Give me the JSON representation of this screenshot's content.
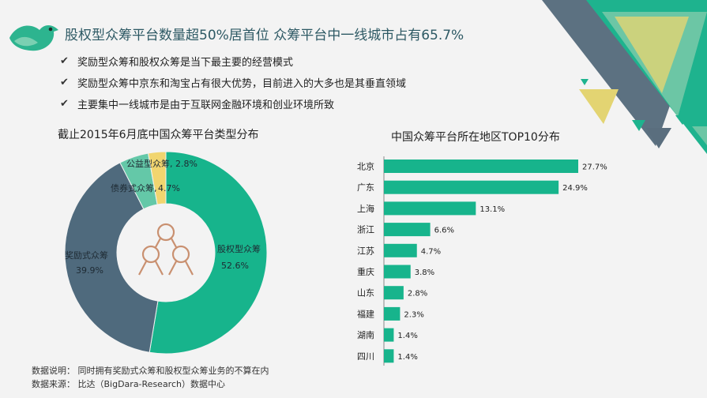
{
  "header": {
    "title": "股权型众筹平台数量超50%居首位  众筹平台中一线城市占有65.7%"
  },
  "bullets": [
    "奖励型众筹和股权众筹是当下最主要的经营模式",
    "奖励型众筹中京东和淘宝占有很大优势，目前进入的大多也是其垂直领域",
    "主要集中一线城市是由于互联网金融环境和创业环境所致"
  ],
  "icons": {
    "bullet_icon": "check-icon",
    "logo": "bird-icon",
    "pie_center": "network-nodes-icon"
  },
  "colors": {
    "teal": "#17b48c",
    "slate": "#4f6a7d",
    "mint": "#64c8a8",
    "yellow": "#f1d56f",
    "title": "#2d5964"
  },
  "chart_data": [
    {
      "type": "pie",
      "title": "截止2015年6月底中国众筹平台类型分布",
      "donut": true,
      "slices": [
        {
          "label": "股权型众筹",
          "value": 52.6,
          "value_text": "52.6%",
          "color": "#17b48c"
        },
        {
          "label": "奖励式众筹",
          "value": 39.9,
          "value_text": "39.9%",
          "color": "#4f6a7d"
        },
        {
          "label": "债券式众筹,",
          "value": 4.7,
          "value_text": "4.7%",
          "color": "#64c8a8"
        },
        {
          "label": "公益型众筹,",
          "value": 2.8,
          "value_text": "2.8%",
          "color": "#f1d56f"
        }
      ]
    },
    {
      "type": "bar",
      "orientation": "horizontal",
      "title": "中国众筹平台所在地区TOP10分布",
      "categories": [
        "北京",
        "广东",
        "上海",
        "浙江",
        "江苏",
        "重庆",
        "山东",
        "福建",
        "湖南",
        "四川"
      ],
      "values": [
        27.7,
        24.9,
        13.1,
        6.6,
        4.7,
        3.8,
        2.8,
        2.3,
        1.4,
        1.4
      ],
      "value_labels": [
        "27.7%",
        "24.9%",
        "13.1%",
        "6.6%",
        "4.7%",
        "3.8%",
        "2.8%",
        "2.3%",
        "1.4%",
        "1.4%"
      ],
      "color": "#17b48c",
      "xlim": [
        0,
        27.7
      ]
    }
  ],
  "notes": {
    "line1": "数据说明： 同时拥有奖励式众筹和股权型众筹业务的不算在内",
    "line2": "数据来源： 比达（BigDara-Research）数据中心"
  }
}
